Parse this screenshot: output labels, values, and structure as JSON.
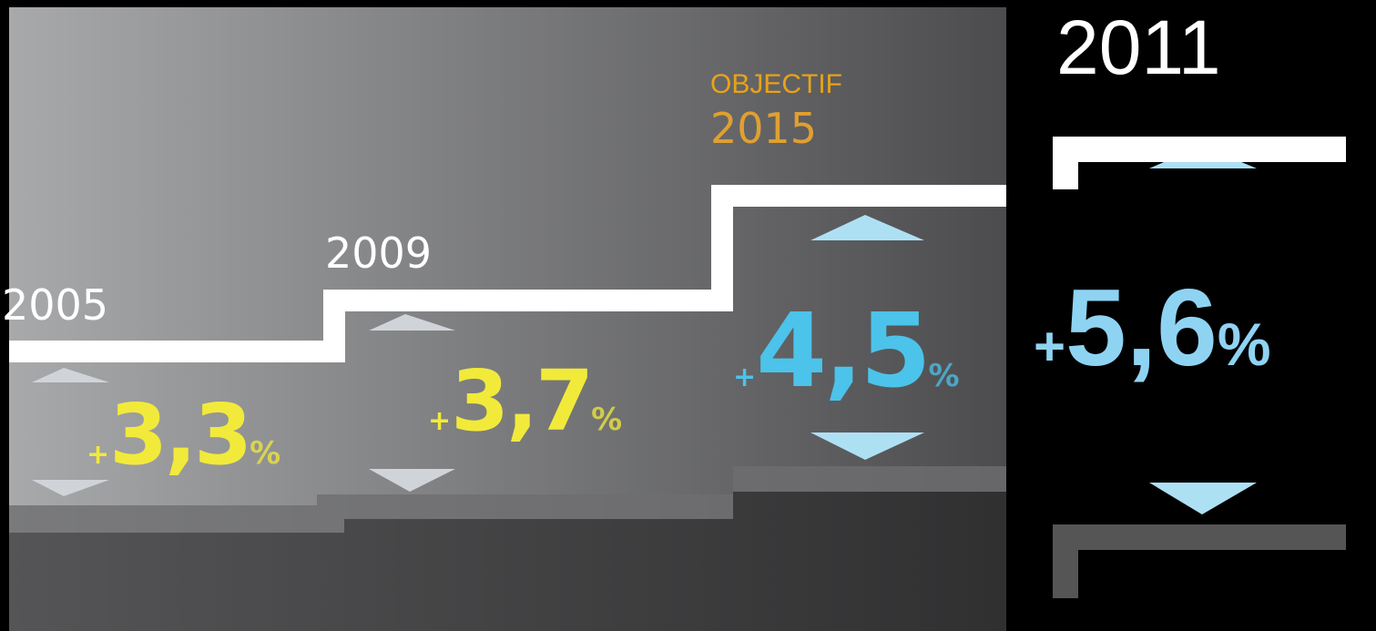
{
  "steps": [
    {
      "year": "2005",
      "sign": "+",
      "value": "3,3",
      "unit": "%"
    },
    {
      "year": "2009",
      "sign": "+",
      "value": "3,7",
      "unit": "%"
    },
    {
      "label": "OBJECTIF",
      "year": "2015",
      "sign": "+",
      "value": "4,5",
      "unit": "%"
    }
  ],
  "current": {
    "year": "2011",
    "sign": "+",
    "value": "5,6",
    "unit": "%"
  }
}
